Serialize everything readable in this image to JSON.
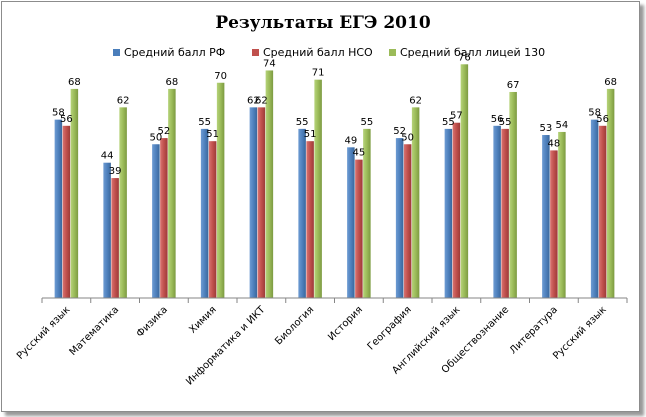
{
  "chart_data": {
    "type": "bar",
    "title": "Результаты ЕГЭ 2010",
    "xlabel": "",
    "ylabel": "",
    "ylim": [
      0,
      80
    ],
    "grid": false,
    "legend": "top",
    "categories": [
      "Русский язык",
      "Математика",
      "Физика",
      "Химия",
      "Информатика и ИКТ",
      "Биология",
      "История",
      "География",
      "Английский язык",
      "Обществознание",
      "Литература",
      "Русский язык"
    ],
    "series": [
      {
        "name": "Средний балл РФ",
        "color": "#4a7ebb",
        "values": [
          58,
          44,
          50,
          55,
          62,
          55,
          49,
          52,
          55,
          56,
          53,
          58
        ]
      },
      {
        "name": "Средний балл НСО",
        "color": "#c0504d",
        "values": [
          56,
          39,
          52,
          51,
          62,
          51,
          45,
          50,
          57,
          55,
          48,
          56
        ]
      },
      {
        "name": "Средний балл лицей 130",
        "color": "#9bbb59",
        "values": [
          68,
          62,
          68,
          70,
          74,
          71,
          55,
          62,
          76,
          67,
          54,
          68
        ]
      }
    ]
  }
}
